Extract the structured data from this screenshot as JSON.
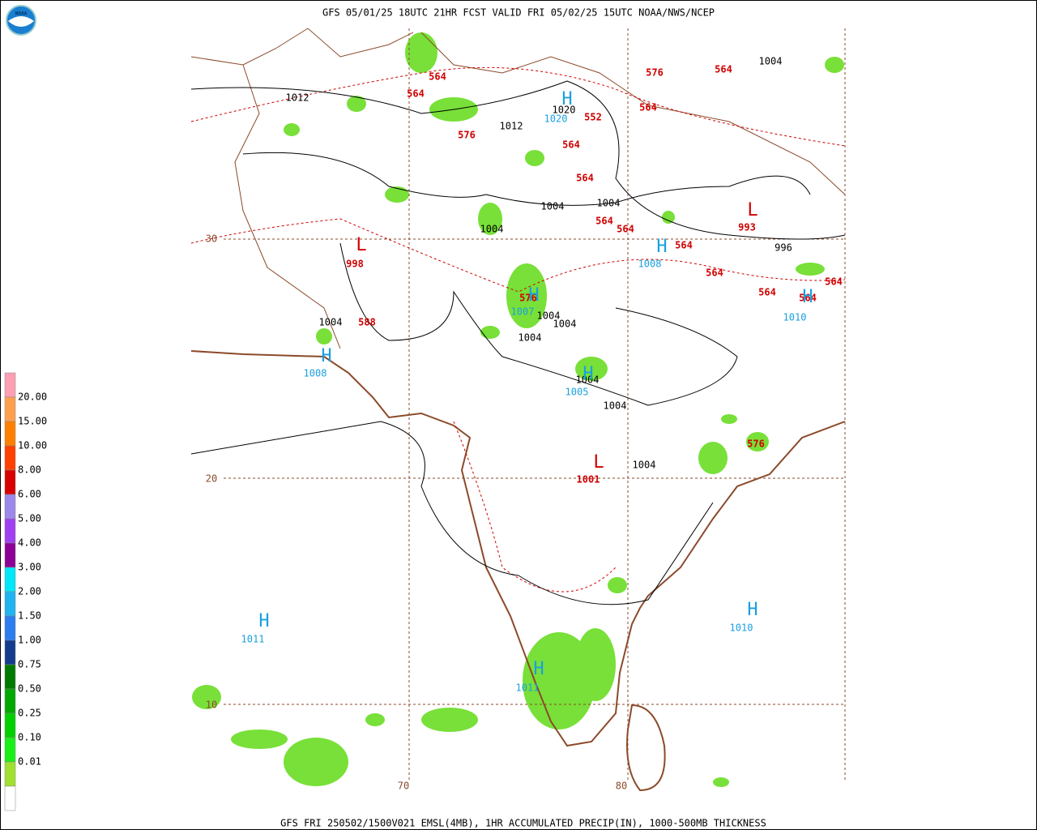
{
  "header": {
    "title": "GFS 05/01/25 18UTC 21HR FCST VALID FRI 05/02/25 15UTC NOAA/NWS/NCEP"
  },
  "footer": {
    "text": "GFS FRI 250502/1500V021 EMSL(4MB), 1HR ACCUMULATED PRECIP(IN), 1000-500MB THICKNESS"
  },
  "logo": {
    "text": "NOAA"
  },
  "legend": {
    "colors": [
      "#ff9fb4",
      "#ffa050",
      "#ff8000",
      "#ff4000",
      "#d80000",
      "#9c88e8",
      "#a040f0",
      "#8c0096",
      "#00e8f8",
      "#20b4f0",
      "#2c7ef0",
      "#143c8c",
      "#007a00",
      "#00a800",
      "#00d000",
      "#18f018",
      "#a0e030",
      "#ffffff"
    ],
    "labels": [
      "20.00",
      "15.00",
      "10.00",
      "8.00",
      "6.00",
      "5.00",
      "4.00",
      "3.00",
      "2.00",
      "1.50",
      "1.00",
      "0.75",
      "0.50",
      "0.25",
      "0.10",
      "0.01"
    ]
  },
  "map": {
    "isobar_labels": [
      "1012",
      "1020",
      "1012",
      "1004",
      "1004",
      "1004",
      "1004",
      "996",
      "1004",
      "1004",
      "1004",
      "1004",
      "1004",
      "1004",
      "1004"
    ],
    "thickness_labels": [
      "564",
      "564",
      "576",
      "552",
      "564",
      "564",
      "564",
      "564",
      "576",
      "564",
      "564",
      "564",
      "564",
      "564",
      "564",
      "564",
      "576",
      "588",
      "576"
    ],
    "lows": [
      {
        "symbol": "L",
        "value": "998"
      },
      {
        "symbol": "L",
        "value": "993"
      },
      {
        "symbol": "L",
        "value": "1001"
      }
    ],
    "highs": [
      {
        "symbol": "H",
        "value": "1020"
      },
      {
        "symbol": "H",
        "value": "1008"
      },
      {
        "symbol": "H",
        "value": "1007"
      },
      {
        "symbol": "H",
        "value": "1008"
      },
      {
        "symbol": "H",
        "value": "1005"
      },
      {
        "symbol": "H",
        "value": "1010"
      },
      {
        "symbol": "H",
        "value": "1011"
      },
      {
        "symbol": "H",
        "value": "1010"
      },
      {
        "symbol": "H",
        "value": "1011"
      }
    ],
    "lat_labels": [
      "30",
      "20",
      "10"
    ],
    "lon_labels": [
      "70",
      "80"
    ]
  }
}
